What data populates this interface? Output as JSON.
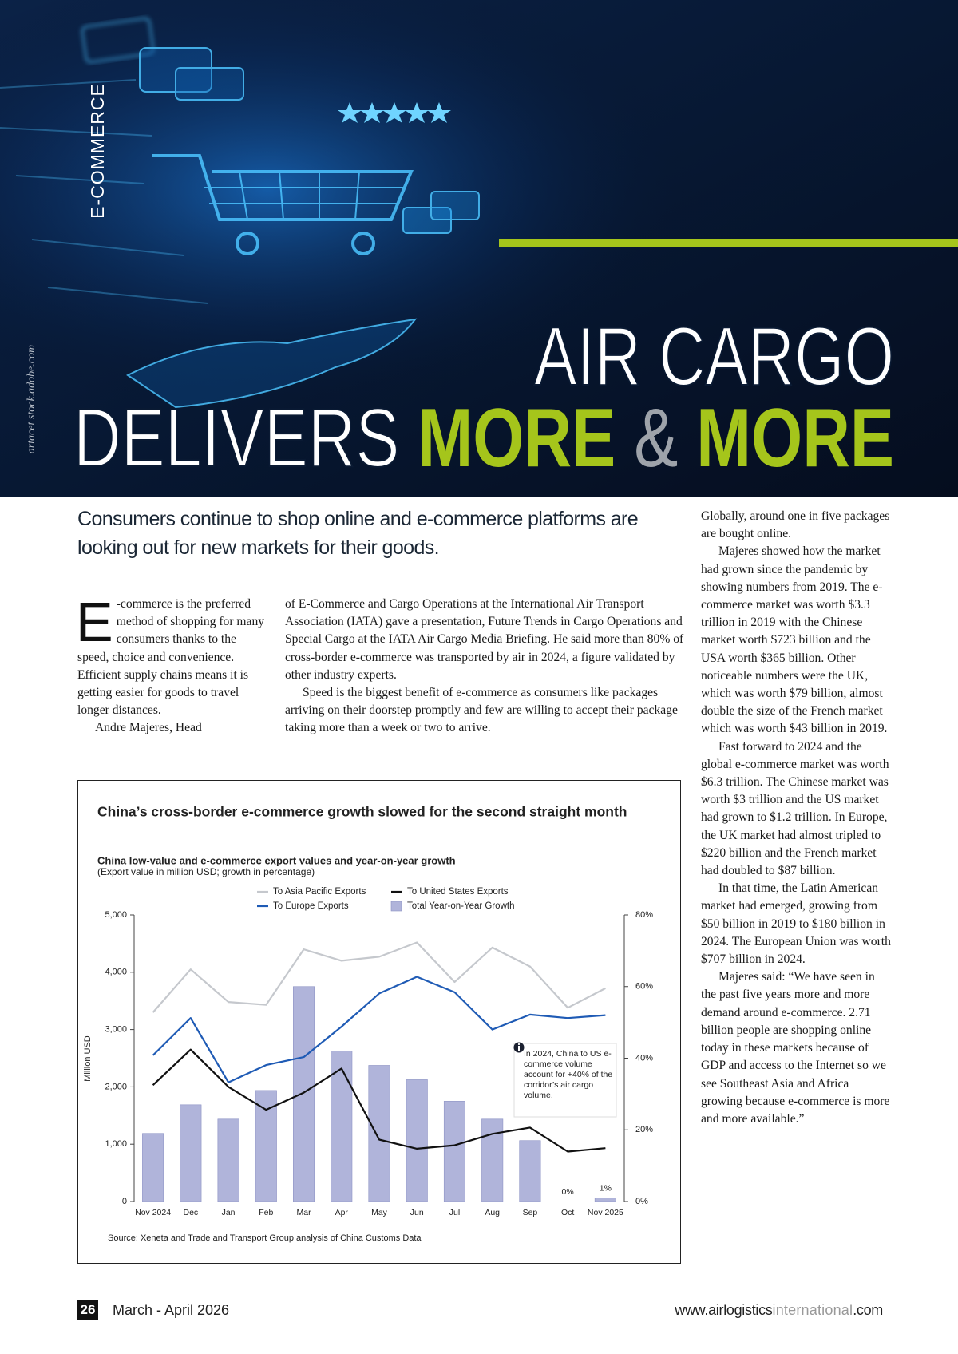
{
  "hero": {
    "section": "E-COMMERCE",
    "credit": "artacet stock.adobe.com",
    "title_line1": "AIR CARGO",
    "title_line2": [
      "DELIVERS",
      "MORE",
      "&",
      "MORE"
    ]
  },
  "standfirst": "Consumers continue to shop online and e-commerce platforms are looking out for new markets for their goods.",
  "body": {
    "dropcap": "E",
    "column1": [
      "-commerce is the preferred method of shopping for many consumers thanks to the speed, choice and convenience. Efficient supply chains means it is getting easier for goods to travel longer distances.",
      "Andre Majeres, Head"
    ],
    "column2": [
      "of E-Commerce and Cargo Operations at the International Air Transport Association (IATA) gave a presentation, Future Trends in Cargo Operations and Special Cargo at the IATA Air Cargo Media Briefing. He said more than 80% of cross-border e-commerce was transported by air in 2024, a figure validated by other industry experts.",
      "Speed is the biggest benefit of e-commerce as consumers like packages arriving on their doorstep promptly and few are willing to accept their package taking more than a week or two to arrive."
    ],
    "column3": [
      "Globally, around one in five packages are bought online.",
      "Majeres showed how the market had grown since the pandemic by showing numbers from 2019. The e-commerce market was worth $3.3 trillion in 2019 with the Chinese market worth $723 billion and the USA worth $365 billion. Other noticeable numbers were the UK, which was worth $79 billion, almost double the size of the French market which was worth $43 billion in 2019.",
      "Fast forward to 2024 and the global e-commerce market was worth $6.3 trillion. The Chinese market was worth $3 trillion and the US market had grown to $1.2 trillion. In Europe, the UK market had almost tripled to $220 billion and the French market had doubled to $87 billion.",
      "In that time, the Latin American market had emerged, growing from $50 billion in 2019 to $180 billion in 2024. The European Union was worth $707 billion in 2024.",
      "Majeres said: “We have seen in the past five years more and more demand around e-commerce. 2.71 billion people are shopping online today in these markets because of GDP and access to the Internet so we see Southeast Asia and Africa growing because e-commerce is more and more available.”"
    ]
  },
  "chart_data": {
    "type": "line",
    "title": "China’s cross-border e-commerce growth slowed for the second straight month",
    "subtitle": "China low-value and e-commerce export values and year-on-year growth",
    "note": "(Export value in million USD; growth in percentage)",
    "y_label": "Million USD",
    "annotation": "In 2024, China to US e-commerce volume account for +40% of the corridor’s air cargo volume.",
    "source": "Source: Xeneta and Trade and Transport Group analysis of China Customs Data",
    "categories": [
      "Nov 2024",
      "Dec",
      "Jan",
      "Feb",
      "Mar",
      "Apr",
      "May",
      "Jun",
      "Jul",
      "Aug",
      "Sep",
      "Oct",
      "Nov 2025"
    ],
    "series": [
      {
        "name": "To Asia Pacific Exports",
        "type": "line",
        "color": "#c5c8cd",
        "values": [
          3300,
          4050,
          3480,
          3430,
          4400,
          4200,
          4270,
          4520,
          3830,
          4430,
          4100,
          3380,
          3720
        ]
      },
      {
        "name": "To United States Exports",
        "type": "line",
        "color": "#111111",
        "values": [
          2030,
          2650,
          2000,
          1600,
          1900,
          2320,
          1080,
          920,
          980,
          1180,
          1290,
          870,
          930
        ]
      },
      {
        "name": "To Europe Exports",
        "type": "line",
        "color": "#1f5bb5",
        "values": [
          2550,
          3200,
          2080,
          2380,
          2520,
          3050,
          3630,
          3920,
          3650,
          3000,
          3260,
          3200,
          3250
        ]
      },
      {
        "name": "Total Year-on-Year Growth",
        "type": "bar",
        "color": "#b0b4da",
        "axis": "y2",
        "values": [
          19,
          27,
          23,
          31,
          60,
          42,
          38,
          34,
          28,
          23,
          17,
          0,
          1
        ],
        "value_labels": [
          null,
          null,
          null,
          null,
          null,
          null,
          null,
          null,
          null,
          null,
          null,
          "0%",
          "1%"
        ]
      }
    ],
    "ylim": [
      0,
      5000
    ],
    "yticks": [
      0,
      {
        "value": 1000,
        "label": "1,000"
      },
      {
        "value": 2000,
        "label": "2,000"
      },
      {
        "value": 3000,
        "label": "3,000"
      },
      {
        "value": 4000,
        "label": "4,000"
      },
      {
        "value": 5000,
        "label": "5,000"
      }
    ],
    "y2lim": [
      0,
      80
    ],
    "y2ticks": [
      {
        "value": 0,
        "label": "0%"
      },
      {
        "value": 20,
        "label": "20%"
      },
      {
        "value": 40,
        "label": "40%"
      },
      {
        "value": 60,
        "label": "60%"
      },
      {
        "value": 80,
        "label": "80%"
      }
    ],
    "grid": false
  },
  "footer": {
    "page": "26",
    "issue": "March - April 2026",
    "website": [
      "www.airlogistics",
      "international",
      ".com"
    ]
  }
}
